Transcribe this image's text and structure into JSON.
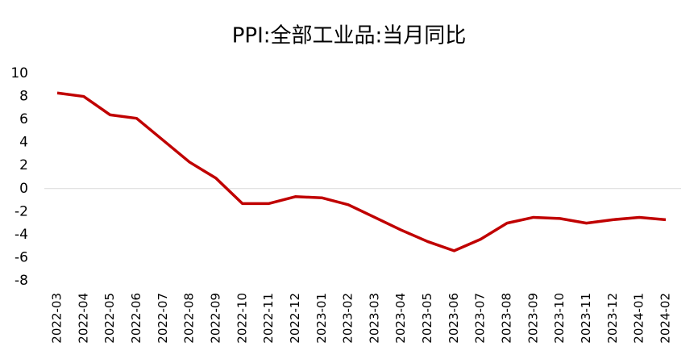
{
  "chart_data": {
    "type": "line",
    "title": "PPI:全部工业品:当月同比",
    "categories": [
      "2022-03",
      "2022-04",
      "2022-05",
      "2022-06",
      "2022-07",
      "2022-08",
      "2022-09",
      "2022-10",
      "2022-11",
      "2022-12",
      "2023-01",
      "2023-02",
      "2023-03",
      "2023-04",
      "2023-05",
      "2023-06",
      "2023-07",
      "2023-08",
      "2023-09",
      "2023-10",
      "2023-11",
      "2023-12",
      "2024-01",
      "2024-02"
    ],
    "series": [
      {
        "name": "PPI:全部工业品:当月同比",
        "color": "#c00000",
        "values": [
          8.3,
          8.0,
          6.4,
          6.1,
          4.2,
          2.3,
          0.9,
          -1.3,
          -1.3,
          -0.7,
          -0.8,
          -1.4,
          -2.5,
          -3.6,
          -4.6,
          -5.4,
          -4.4,
          -3.0,
          -2.5,
          -2.6,
          -3.0,
          -2.7,
          -2.5,
          -2.7
        ]
      }
    ],
    "ylim": [
      -8,
      10
    ],
    "yticks": [
      -8,
      -6,
      -4,
      -2,
      0,
      2,
      4,
      6,
      8,
      10
    ]
  }
}
